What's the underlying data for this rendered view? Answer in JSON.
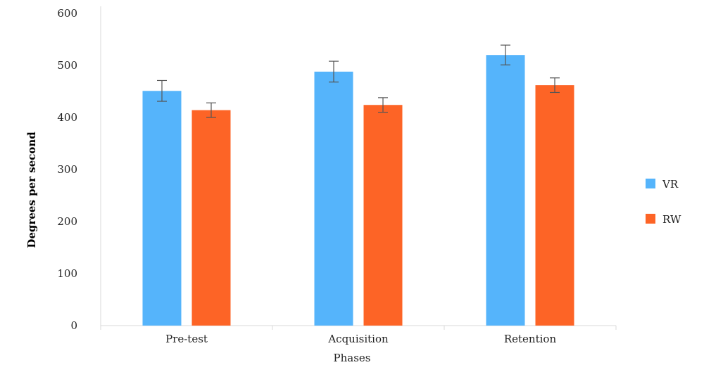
{
  "chart_data": {
    "type": "bar",
    "categories": [
      "Pre-test",
      "Acquisition",
      "Retention"
    ],
    "series": [
      {
        "name": "VR",
        "color": "#55b4fb",
        "values": [
          451,
          488,
          520
        ],
        "errors": [
          20,
          20,
          19
        ]
      },
      {
        "name": "RW",
        "color": "#fd6426",
        "values": [
          414,
          424,
          462
        ],
        "errors": [
          14,
          14,
          14
        ]
      }
    ],
    "xlabel": "Phases",
    "ylabel": "Degrees per second",
    "ylim": [
      0,
      600
    ],
    "yticks": [
      "0",
      "100",
      "200",
      "300",
      "400",
      "500",
      "600"
    ],
    "legend_position": "right",
    "grid": false
  }
}
